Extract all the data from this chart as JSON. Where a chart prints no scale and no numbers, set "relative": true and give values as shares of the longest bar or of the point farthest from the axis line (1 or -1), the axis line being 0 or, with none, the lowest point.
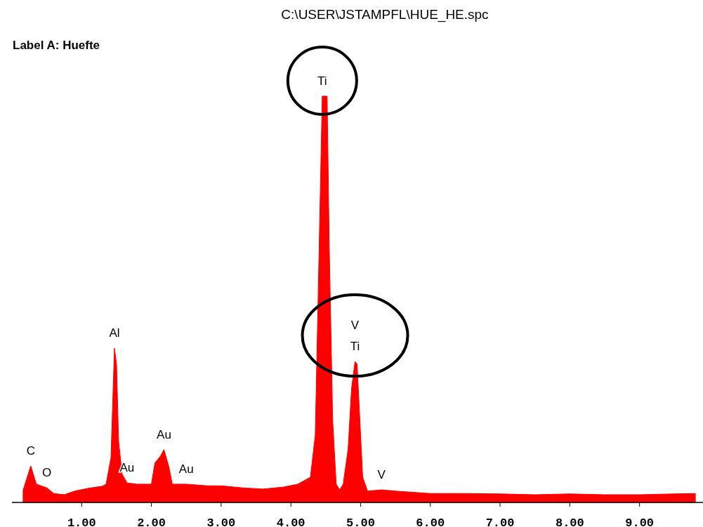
{
  "chart_data": {
    "type": "area",
    "title": "C:\\USER\\JSTAMPFL\\HUE_HE.spc",
    "subtitle": "Label A: Huefte",
    "relative": true,
    "color": "#ff0000",
    "xlim": [
      0,
      9.91
    ],
    "xticks": [
      {
        "value": 1,
        "label": "1.00"
      },
      {
        "value": 2,
        "label": "2.00"
      },
      {
        "value": 3,
        "label": "3.00"
      },
      {
        "value": 4,
        "label": "4.00"
      },
      {
        "value": 5,
        "label": "5.00"
      },
      {
        "value": 6,
        "label": "6.00"
      },
      {
        "value": 7,
        "label": "7.00"
      },
      {
        "value": 8,
        "label": "8.00"
      },
      {
        "value": 9,
        "label": "9.00"
      }
    ],
    "x": [
      0.16,
      0.27,
      0.35,
      0.5,
      0.6,
      0.75,
      0.9,
      1.1,
      1.3,
      1.35,
      1.42,
      1.47,
      1.5,
      1.53,
      1.58,
      1.65,
      1.8,
      2.0,
      2.05,
      2.13,
      2.18,
      2.25,
      2.3,
      2.5,
      2.8,
      3.0,
      3.3,
      3.6,
      3.9,
      4.1,
      4.28,
      4.35,
      4.4,
      4.45,
      4.52,
      4.55,
      4.6,
      4.65,
      4.7,
      4.75,
      4.82,
      4.87,
      4.92,
      4.95,
      4.98,
      5.03,
      5.1,
      5.3,
      5.5,
      6.0,
      6.5,
      7.0,
      7.5,
      8.0,
      8.5,
      9.0,
      9.5,
      9.8
    ],
    "values": [
      0.03,
      0.09,
      0.045,
      0.036,
      0.022,
      0.019,
      0.028,
      0.035,
      0.04,
      0.045,
      0.11,
      0.38,
      0.34,
      0.15,
      0.07,
      0.048,
      0.045,
      0.045,
      0.097,
      0.114,
      0.13,
      0.088,
      0.045,
      0.045,
      0.041,
      0.041,
      0.036,
      0.033,
      0.038,
      0.045,
      0.062,
      0.166,
      0.58,
      1.0,
      1.0,
      0.63,
      0.2,
      0.045,
      0.031,
      0.045,
      0.13,
      0.28,
      0.347,
      0.34,
      0.235,
      0.062,
      0.028,
      0.031,
      0.028,
      0.022,
      0.022,
      0.021,
      0.019,
      0.021,
      0.019,
      0.019,
      0.021,
      0.022
    ],
    "annotations": [
      {
        "text": "C",
        "x": 0.27,
        "y": 0.09
      },
      {
        "text": "O",
        "x": 0.5,
        "y": 0.036
      },
      {
        "text": "Al",
        "x": 1.47,
        "y": 0.38
      },
      {
        "text": "Au",
        "x": 1.65,
        "y": 0.048
      },
      {
        "text": "Au",
        "x": 2.18,
        "y": 0.13
      },
      {
        "text": "Au",
        "x": 2.5,
        "y": 0.045
      },
      {
        "text": "Ti",
        "x": 4.45,
        "y": 1.0
      },
      {
        "text": "V",
        "x": 4.92,
        "y": 0.347
      },
      {
        "text": "Ti",
        "x": 4.92,
        "y": 0.347
      },
      {
        "text": "V",
        "x": 5.3,
        "y": 0.031
      }
    ]
  }
}
